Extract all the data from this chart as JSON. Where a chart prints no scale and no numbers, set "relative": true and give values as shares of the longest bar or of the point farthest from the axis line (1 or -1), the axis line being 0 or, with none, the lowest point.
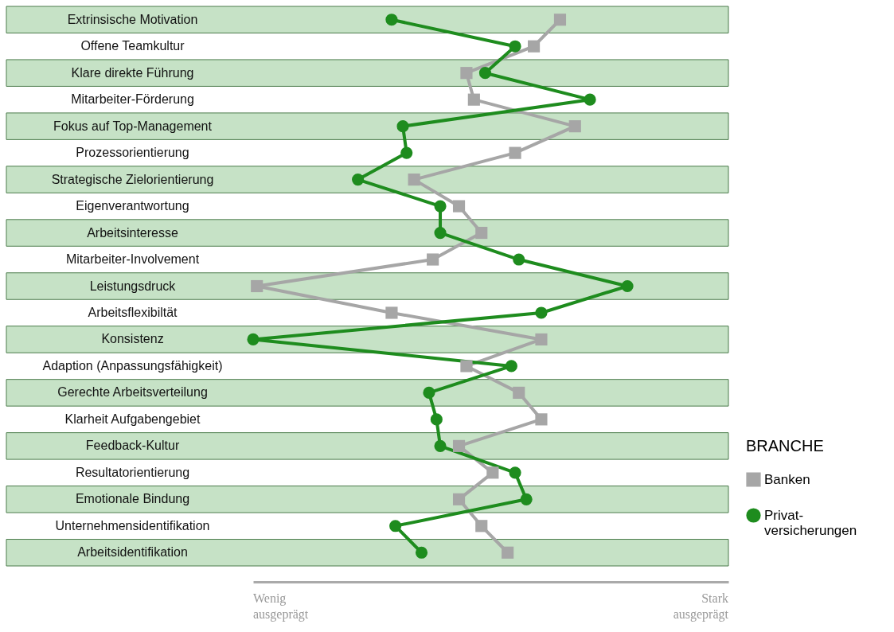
{
  "chart_data": {
    "type": "line",
    "relative": true,
    "orientation": "horizontal",
    "legend_title": "BRANCHE",
    "legend": "bottom right",
    "categories": [
      "Extrinsische Motivation",
      "Offene Teamkultur",
      "Klare direkte Führung",
      "Mitarbeiter-Förderung",
      "Fokus auf Top-Management",
      "Prozessorientierung",
      "Strategische Zielorientierung",
      "Eigenverantwortung",
      "Arbeitsinteresse",
      "Mitarbeiter-Involvement",
      "Leistungsdruck",
      "Arbeitsflexibiltät",
      "Konsistenz",
      "Adaption (Anpassungsfähigkeit)",
      "Gerechte Arbeitsverteilung",
      "Klarheit Aufgabengebiet",
      "Feedback-Kultur",
      "Resultatorientierung",
      "Emotionale Bindung",
      "Unternehmensidentifikation",
      "Arbeitsidentifikation"
    ],
    "series": [
      {
        "name": "Banken",
        "color": "#a6a6a6",
        "marker": "square",
        "values": [
          0.82,
          0.75,
          0.57,
          0.59,
          0.86,
          0.7,
          0.43,
          0.55,
          0.61,
          0.48,
          0.01,
          0.37,
          0.77,
          0.57,
          0.71,
          0.77,
          0.55,
          0.64,
          0.55,
          0.61,
          0.68
        ]
      },
      {
        "name": "Privat-versicherungen",
        "color": "#1e8c1e",
        "marker": "circle",
        "values": [
          0.37,
          0.7,
          0.62,
          0.9,
          0.4,
          0.41,
          0.28,
          0.5,
          0.5,
          0.71,
          1,
          0.77,
          0,
          0.69,
          0.47,
          0.49,
          0.5,
          0.7,
          0.73,
          0.38,
          0.45
        ]
      }
    ],
    "annotations": [
      "Wenig ausgeprägt",
      "Stark ausgeprägt"
    ]
  }
}
